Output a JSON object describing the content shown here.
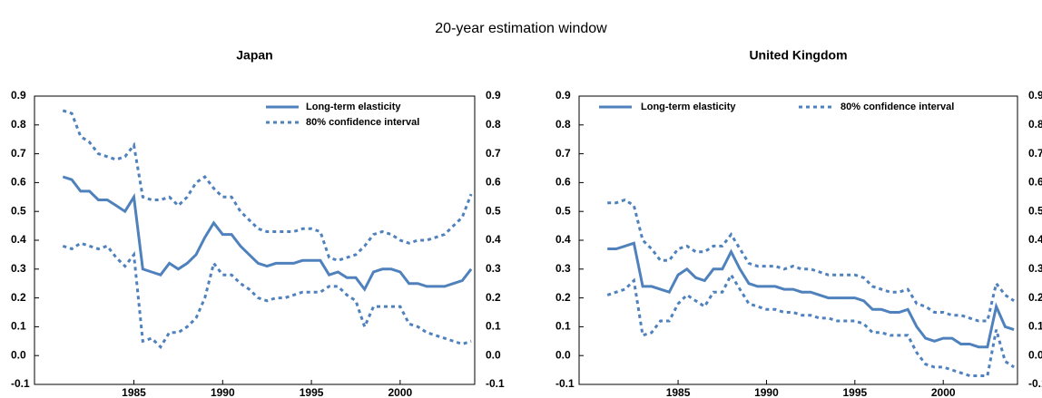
{
  "title": "20-year estimation window",
  "chart_data": [
    {
      "type": "line",
      "title": "Japan",
      "legend": "upper right",
      "x": [
        1981,
        1981.5,
        1982,
        1982.5,
        1983,
        1983.5,
        1984,
        1984.5,
        1985,
        1985.5,
        1986,
        1986.5,
        1987,
        1987.5,
        1988,
        1988.5,
        1989,
        1989.5,
        1990,
        1990.5,
        1991,
        1991.5,
        1992,
        1992.5,
        1993,
        1993.5,
        1994,
        1994.5,
        1995,
        1995.5,
        1996,
        1996.5,
        1997,
        1997.5,
        1998,
        1998.5,
        1999,
        1999.5,
        2000,
        2000.5,
        2001,
        2001.5,
        2002,
        2002.5,
        2003,
        2003.5,
        2004
      ],
      "xlim": [
        1979.4,
        2004.2
      ],
      "xticks": [
        1985,
        1990,
        1995,
        2000
      ],
      "ylim": [
        -0.1,
        0.9
      ],
      "yticks": [
        -0.1,
        {
          "value": 0,
          "label": "0.0"
        },
        0.1,
        0.2,
        0.3,
        0.4,
        0.5,
        0.6,
        0.7,
        0.8,
        0.9
      ],
      "series": [
        {
          "name": "Long-term elasticity",
          "color": "#4f81bd",
          "style": "solid",
          "values": [
            0.62,
            0.61,
            0.57,
            0.57,
            0.54,
            0.54,
            0.52,
            0.5,
            0.55,
            0.3,
            0.29,
            0.28,
            0.32,
            0.3,
            0.32,
            0.35,
            0.41,
            0.46,
            0.42,
            0.42,
            0.38,
            0.35,
            0.32,
            0.31,
            0.32,
            0.32,
            0.32,
            0.33,
            0.33,
            0.33,
            0.28,
            0.29,
            0.27,
            0.27,
            0.23,
            0.29,
            0.3,
            0.3,
            0.29,
            0.25,
            0.25,
            0.24,
            0.24,
            0.24,
            0.25,
            0.26,
            0.3
          ]
        },
        {
          "name": "80% confidence interval",
          "color": "#4f81bd",
          "style": "dotted",
          "upper": [
            0.85,
            0.84,
            0.76,
            0.74,
            0.7,
            0.69,
            0.68,
            0.69,
            0.73,
            0.55,
            0.54,
            0.54,
            0.55,
            0.52,
            0.55,
            0.6,
            0.62,
            0.58,
            0.55,
            0.55,
            0.5,
            0.47,
            0.44,
            0.43,
            0.43,
            0.43,
            0.43,
            0.44,
            0.44,
            0.43,
            0.34,
            0.33,
            0.34,
            0.35,
            0.38,
            0.42,
            0.43,
            0.42,
            0.4,
            0.39,
            0.4,
            0.4,
            0.41,
            0.42,
            0.45,
            0.48,
            0.56
          ],
          "lower": [
            0.38,
            0.37,
            0.39,
            0.38,
            0.37,
            0.38,
            0.34,
            0.31,
            0.35,
            0.05,
            0.06,
            0.03,
            0.08,
            0.08,
            0.1,
            0.13,
            0.2,
            0.32,
            0.28,
            0.28,
            0.25,
            0.23,
            0.2,
            0.19,
            0.2,
            0.2,
            0.21,
            0.22,
            0.22,
            0.22,
            0.24,
            0.24,
            0.21,
            0.19,
            0.1,
            0.17,
            0.17,
            0.17,
            0.17,
            0.11,
            0.1,
            0.08,
            0.07,
            0.06,
            0.05,
            0.04,
            0.05
          ]
        }
      ]
    },
    {
      "type": "line",
      "title": "United Kingdom",
      "legend": "upper center",
      "x": [
        1981,
        1981.5,
        1982,
        1982.5,
        1983,
        1983.5,
        1984,
        1984.5,
        1985,
        1985.5,
        1986,
        1986.5,
        1987,
        1987.5,
        1988,
        1988.5,
        1989,
        1989.5,
        1990,
        1990.5,
        1991,
        1991.5,
        1992,
        1992.5,
        1993,
        1993.5,
        1994,
        1994.5,
        1995,
        1995.5,
        1996,
        1996.5,
        1997,
        1997.5,
        1998,
        1998.5,
        1999,
        1999.5,
        2000,
        2000.5,
        2001,
        2001.5,
        2002,
        2002.5,
        2003,
        2003.5,
        2004
      ],
      "xlim": [
        1979.4,
        2004.2
      ],
      "xticks": [
        1985,
        1990,
        1995,
        2000
      ],
      "ylim": [
        -0.1,
        0.9
      ],
      "yticks": [
        -0.1,
        {
          "value": 0,
          "label": "0.0"
        },
        0.1,
        0.2,
        0.3,
        0.4,
        0.5,
        0.6,
        0.7,
        0.8,
        0.9
      ],
      "series": [
        {
          "name": "Long-term elasticity",
          "color": "#4f81bd",
          "style": "solid",
          "values": [
            0.37,
            0.37,
            0.38,
            0.39,
            0.24,
            0.24,
            0.23,
            0.22,
            0.28,
            0.3,
            0.27,
            0.26,
            0.3,
            0.3,
            0.36,
            0.3,
            0.25,
            0.24,
            0.24,
            0.24,
            0.23,
            0.23,
            0.22,
            0.22,
            0.21,
            0.2,
            0.2,
            0.2,
            0.2,
            0.19,
            0.16,
            0.16,
            0.15,
            0.15,
            0.16,
            0.1,
            0.06,
            0.05,
            0.06,
            0.06,
            0.04,
            0.04,
            0.03,
            0.03,
            0.17,
            0.1,
            0.09
          ]
        },
        {
          "name": "80% confidence interval",
          "color": "#4f81bd",
          "style": "dotted",
          "upper": [
            0.53,
            0.53,
            0.54,
            0.52,
            0.4,
            0.37,
            0.33,
            0.33,
            0.37,
            0.38,
            0.36,
            0.36,
            0.38,
            0.38,
            0.42,
            0.37,
            0.32,
            0.31,
            0.31,
            0.31,
            0.3,
            0.31,
            0.3,
            0.3,
            0.29,
            0.28,
            0.28,
            0.28,
            0.28,
            0.27,
            0.24,
            0.23,
            0.22,
            0.22,
            0.23,
            0.18,
            0.17,
            0.15,
            0.15,
            0.14,
            0.14,
            0.13,
            0.12,
            0.12,
            0.25,
            0.21,
            0.19
          ],
          "lower": [
            0.21,
            0.22,
            0.23,
            0.26,
            0.07,
            0.08,
            0.12,
            0.12,
            0.18,
            0.21,
            0.19,
            0.17,
            0.22,
            0.22,
            0.28,
            0.23,
            0.18,
            0.17,
            0.16,
            0.16,
            0.15,
            0.15,
            0.14,
            0.14,
            0.13,
            0.13,
            0.12,
            0.12,
            0.12,
            0.11,
            0.08,
            0.08,
            0.07,
            0.07,
            0.07,
            0.01,
            -0.03,
            -0.04,
            -0.04,
            -0.05,
            -0.06,
            -0.07,
            -0.07,
            -0.07,
            0.09,
            -0.02,
            -0.04
          ]
        }
      ]
    }
  ]
}
